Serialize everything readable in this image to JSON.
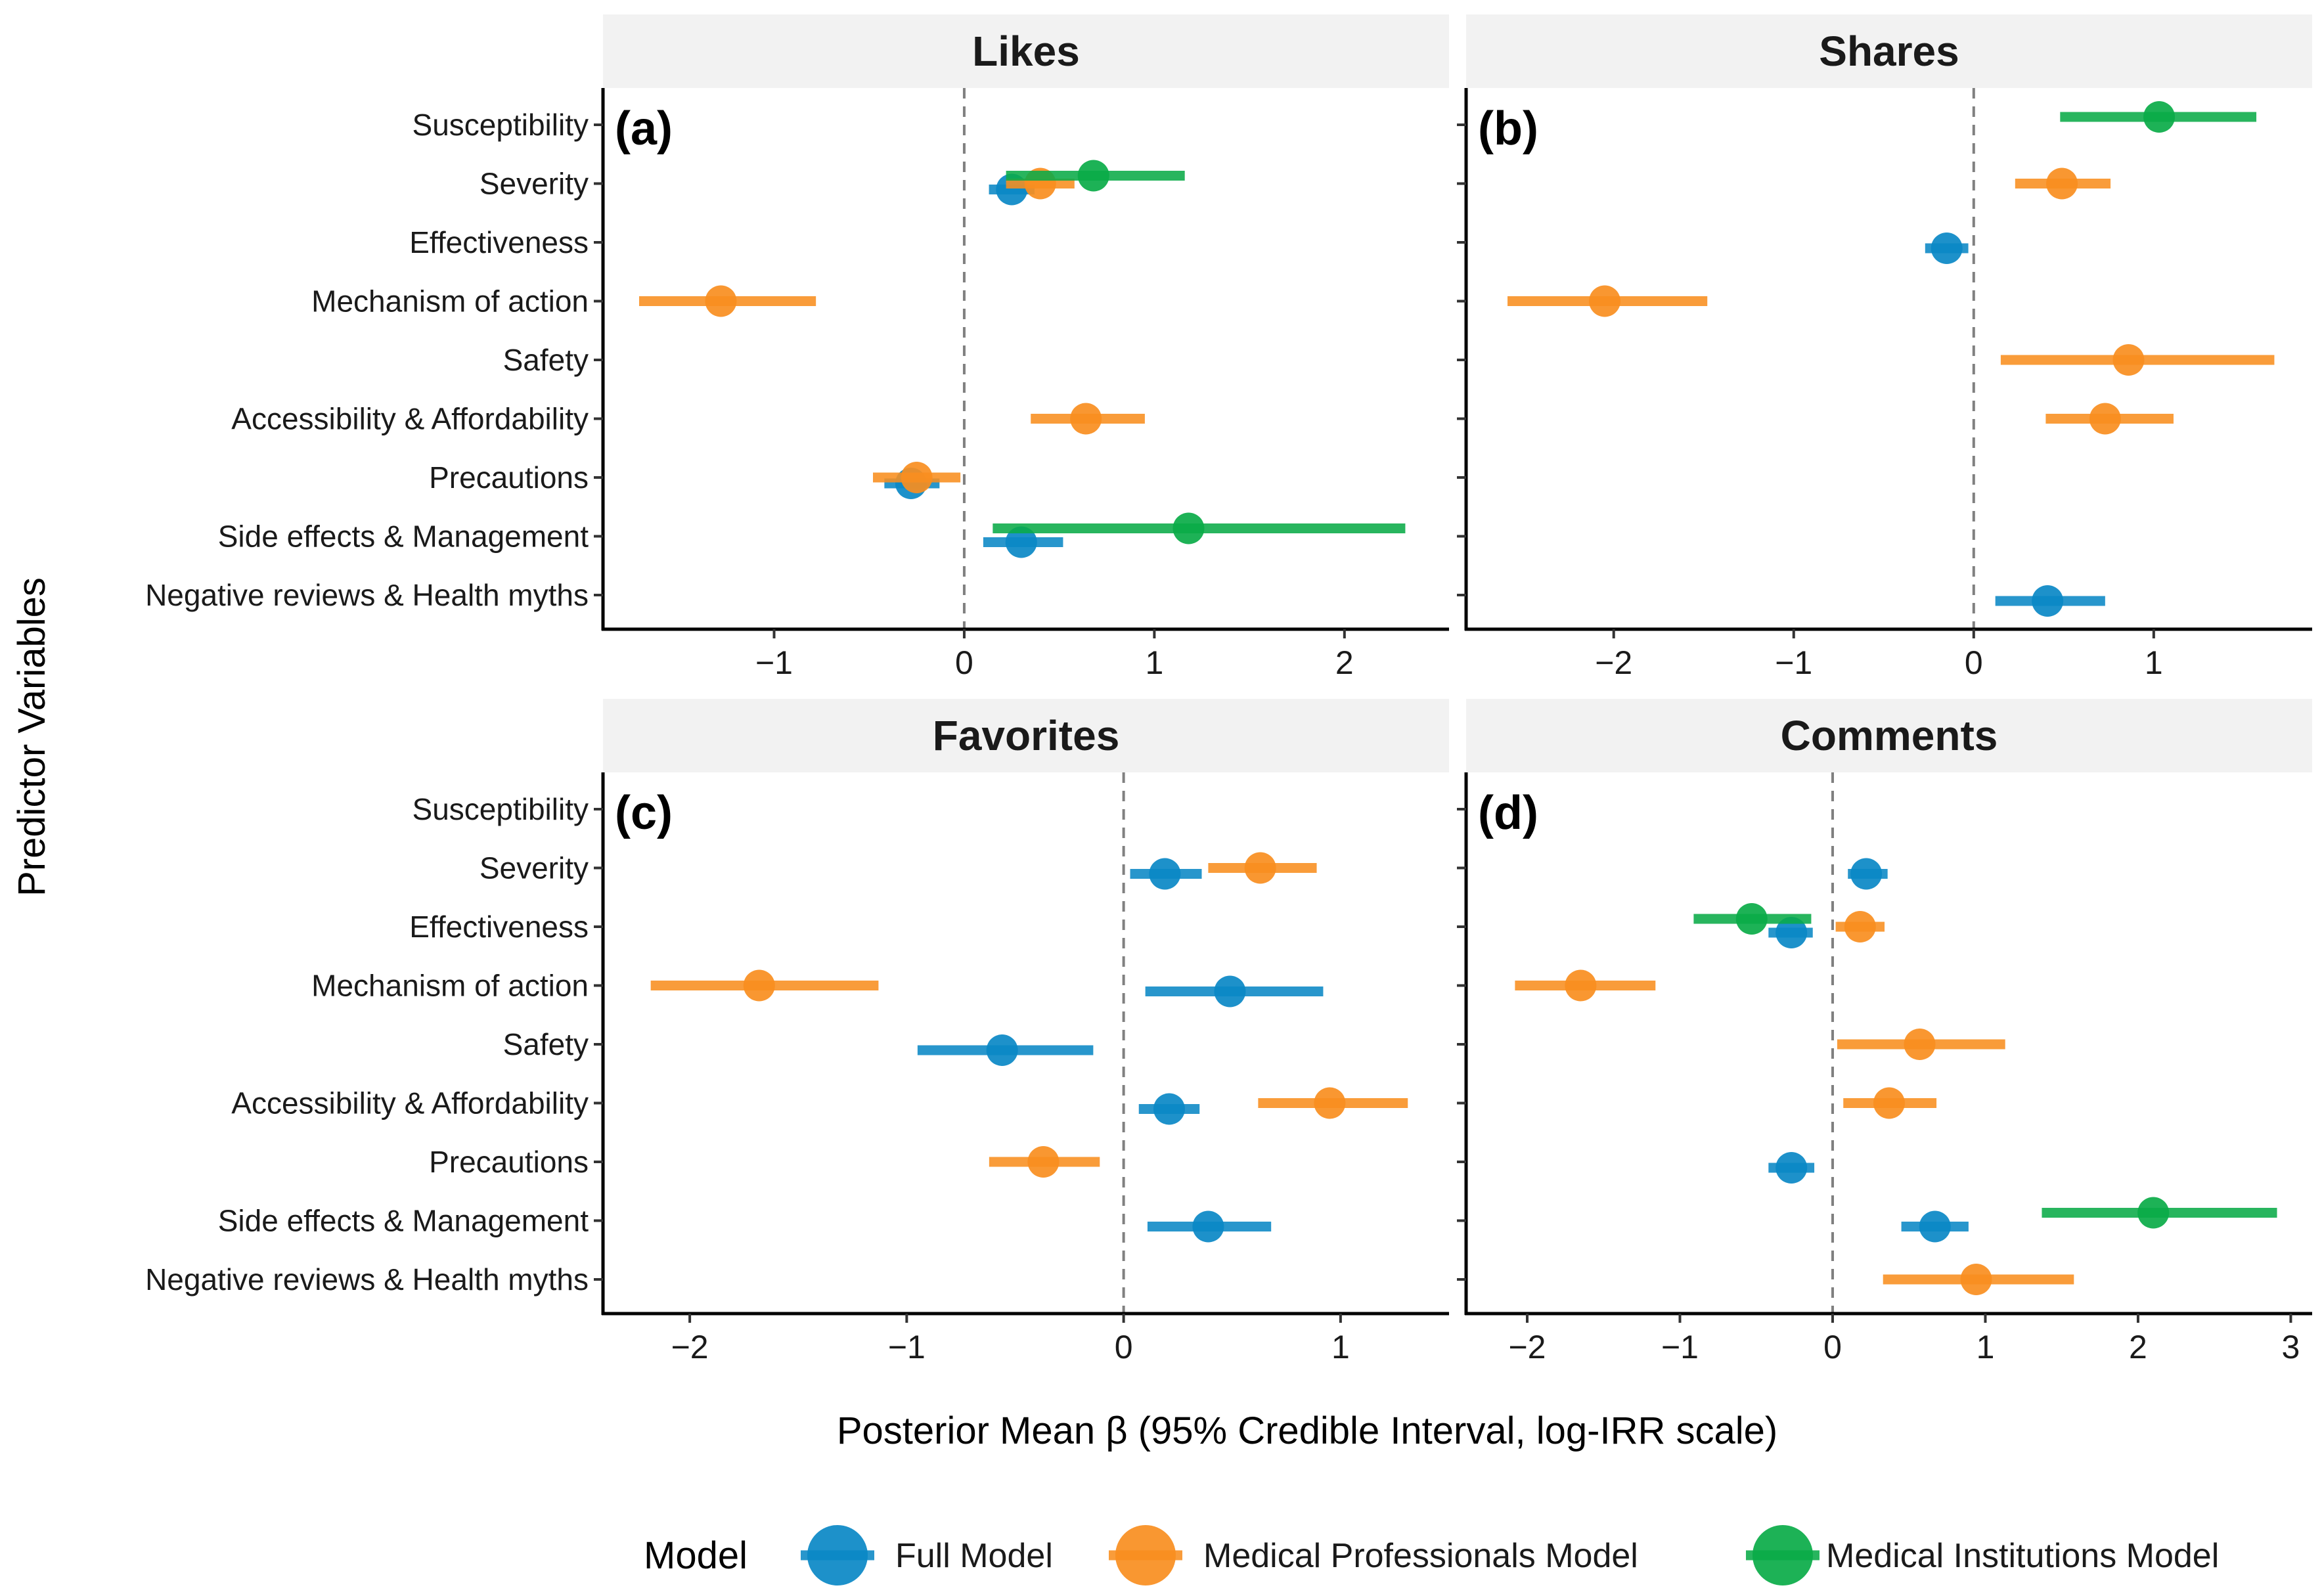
{
  "y_axis_title": "Predictor Variables",
  "x_axis_title": "Posterior Mean β (95% Credible Interval, log-IRR scale)",
  "legend": {
    "title": "Model",
    "placement": "bottom",
    "items": [
      {
        "label": "Full Model",
        "color": "#0a88c5"
      },
      {
        "label": "Medical Professionals Model",
        "color": "#f88e1f"
      },
      {
        "label": "Medical Institutions Model",
        "color": "#0aab48"
      }
    ]
  },
  "chart_data": {
    "type": "scatter",
    "subtype": "forest-plot with credible-interval bars",
    "categories": [
      "Susceptibility",
      "Severity",
      "Effectiveness",
      "Mechanism of action",
      "Safety",
      "Accessibility & Affordability",
      "Precautions",
      "Side effects & Management",
      "Negative reviews & Health myths"
    ],
    "reference_line": {
      "x": 0,
      "style": "dashed"
    },
    "panels": [
      {
        "title": "Likes",
        "tag": "(a)",
        "xlim": [
          -1.9,
          2.55
        ],
        "xticks": [
          -1,
          0,
          1,
          2
        ],
        "series": [
          {
            "name": "Full Model",
            "points": [
              {
                "category": "Severity",
                "mean": 0.25,
                "lo": 0.13,
                "hi": 0.37
              },
              {
                "category": "Precautions",
                "mean": -0.28,
                "lo": -0.42,
                "hi": -0.13
              },
              {
                "category": "Side effects & Management",
                "mean": 0.3,
                "lo": 0.1,
                "hi": 0.52
              }
            ]
          },
          {
            "name": "Medical Professionals Model",
            "points": [
              {
                "category": "Severity",
                "mean": 0.4,
                "lo": 0.22,
                "hi": 0.58
              },
              {
                "category": "Mechanism of action",
                "mean": -1.28,
                "lo": -1.71,
                "hi": -0.78
              },
              {
                "category": "Accessibility & Affordability",
                "mean": 0.64,
                "lo": 0.35,
                "hi": 0.95
              },
              {
                "category": "Precautions",
                "mean": -0.25,
                "lo": -0.48,
                "hi": -0.02
              }
            ]
          },
          {
            "name": "Medical Institutions Model",
            "points": [
              {
                "category": "Severity",
                "mean": 0.68,
                "lo": 0.22,
                "hi": 1.16
              },
              {
                "category": "Side effects & Management",
                "mean": 1.18,
                "lo": 0.15,
                "hi": 2.32
              }
            ]
          }
        ]
      },
      {
        "title": "Shares",
        "tag": "(b)",
        "xlim": [
          -2.82,
          1.88
        ],
        "xticks": [
          -2,
          -1,
          0,
          1
        ],
        "series": [
          {
            "name": "Full Model",
            "points": [
              {
                "category": "Effectiveness",
                "mean": -0.15,
                "lo": -0.27,
                "hi": -0.03
              },
              {
                "category": "Negative reviews & Health myths",
                "mean": 0.41,
                "lo": 0.12,
                "hi": 0.73
              }
            ]
          },
          {
            "name": "Medical Professionals Model",
            "points": [
              {
                "category": "Severity",
                "mean": 0.49,
                "lo": 0.23,
                "hi": 0.76
              },
              {
                "category": "Mechanism of action",
                "mean": -2.05,
                "lo": -2.59,
                "hi": -1.48
              },
              {
                "category": "Safety",
                "mean": 0.86,
                "lo": 0.15,
                "hi": 1.67
              },
              {
                "category": "Accessibility & Affordability",
                "mean": 0.73,
                "lo": 0.4,
                "hi": 1.11
              }
            ]
          },
          {
            "name": "Medical Institutions Model",
            "points": [
              {
                "category": "Susceptibility",
                "mean": 1.03,
                "lo": 0.48,
                "hi": 1.57
              }
            ]
          }
        ]
      },
      {
        "title": "Favorites",
        "tag": "(c)",
        "xlim": [
          -2.4,
          1.5
        ],
        "xticks": [
          -2,
          -1,
          0,
          1
        ],
        "series": [
          {
            "name": "Full Model",
            "points": [
              {
                "category": "Severity",
                "mean": 0.19,
                "lo": 0.03,
                "hi": 0.36
              },
              {
                "category": "Mechanism of action",
                "mean": 0.49,
                "lo": 0.1,
                "hi": 0.92
              },
              {
                "category": "Safety",
                "mean": -0.56,
                "lo": -0.95,
                "hi": -0.14
              },
              {
                "category": "Accessibility & Affordability",
                "mean": 0.21,
                "lo": 0.07,
                "hi": 0.35
              },
              {
                "category": "Side effects & Management",
                "mean": 0.39,
                "lo": 0.11,
                "hi": 0.68
              }
            ]
          },
          {
            "name": "Medical Professionals Model",
            "points": [
              {
                "category": "Severity",
                "mean": 0.63,
                "lo": 0.39,
                "hi": 0.89
              },
              {
                "category": "Mechanism of action",
                "mean": -1.68,
                "lo": -2.18,
                "hi": -1.13
              },
              {
                "category": "Accessibility & Affordability",
                "mean": 0.95,
                "lo": 0.62,
                "hi": 1.31
              },
              {
                "category": "Precautions",
                "mean": -0.37,
                "lo": -0.62,
                "hi": -0.11
              }
            ]
          }
        ]
      },
      {
        "title": "Comments",
        "tag": "(d)",
        "xlim": [
          -2.4,
          3.14
        ],
        "xticks": [
          -2,
          -1,
          0,
          1,
          2,
          3
        ],
        "series": [
          {
            "name": "Full Model",
            "points": [
              {
                "category": "Severity",
                "mean": 0.22,
                "lo": 0.1,
                "hi": 0.36
              },
              {
                "category": "Effectiveness",
                "mean": -0.27,
                "lo": -0.42,
                "hi": -0.13
              },
              {
                "category": "Precautions",
                "mean": -0.27,
                "lo": -0.42,
                "hi": -0.12
              },
              {
                "category": "Side effects & Management",
                "mean": 0.67,
                "lo": 0.45,
                "hi": 0.89
              }
            ]
          },
          {
            "name": "Medical Professionals Model",
            "points": [
              {
                "category": "Effectiveness",
                "mean": 0.18,
                "lo": 0.02,
                "hi": 0.34
              },
              {
                "category": "Mechanism of action",
                "mean": -1.65,
                "lo": -2.08,
                "hi": -1.16
              },
              {
                "category": "Safety",
                "mean": 0.57,
                "lo": 0.03,
                "hi": 1.13
              },
              {
                "category": "Accessibility & Affordability",
                "mean": 0.37,
                "lo": 0.07,
                "hi": 0.68
              },
              {
                "category": "Negative reviews & Health myths",
                "mean": 0.94,
                "lo": 0.33,
                "hi": 1.58
              }
            ]
          },
          {
            "name": "Medical Institutions Model",
            "points": [
              {
                "category": "Effectiveness",
                "mean": -0.53,
                "lo": -0.91,
                "hi": -0.14
              },
              {
                "category": "Side effects & Management",
                "mean": 2.1,
                "lo": 1.37,
                "hi": 2.91
              }
            ]
          }
        ]
      }
    ]
  }
}
